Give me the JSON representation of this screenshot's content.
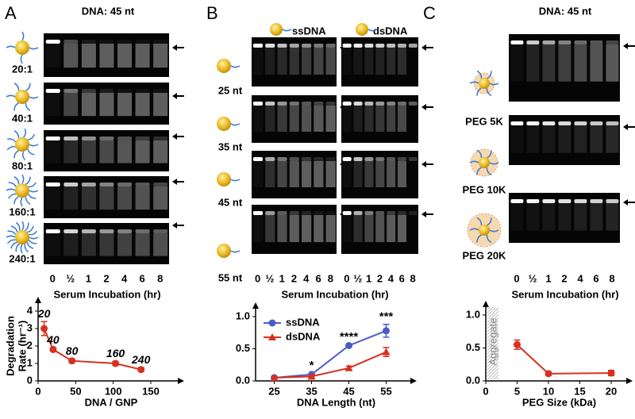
{
  "panels": {
    "a": {
      "label": "A",
      "header": "DNA: 45 nt",
      "gel_labels": [
        "20:1",
        "40:1",
        "80:1",
        "160:1",
        "240:1"
      ],
      "lanes": [
        "0",
        "½",
        "1",
        "2",
        "4",
        "6",
        "8"
      ],
      "lane_axis": "Serum Incubation (hr)"
    },
    "b": {
      "label": "B",
      "columns": [
        "ssDNA",
        "dsDNA"
      ],
      "gel_labels": [
        "25 nt",
        "35 nt",
        "45 nt",
        "55 nt"
      ],
      "lanes": [
        "0",
        "½",
        "1",
        "2",
        "4",
        "6",
        "8"
      ],
      "lane_axis": "Serum Incubation (hr)"
    },
    "c": {
      "label": "C",
      "header": "DNA: 45 nt",
      "gel_labels": [
        "PEG  5K",
        "PEG 10K",
        "PEG 20K"
      ],
      "lanes": [
        "0",
        "½",
        "1",
        "2",
        "4",
        "6",
        "8"
      ],
      "lane_axis": "Serum Incubation (hr)"
    }
  },
  "chart_data": [
    {
      "type": "line",
      "ylabel": [
        "Degradation",
        "Rate (hr⁻¹)"
      ],
      "xlabel": "DNA / GNP",
      "x": [
        8,
        20,
        45,
        103,
        137
      ],
      "series": [
        {
          "color": "#d7301f",
          "marker": "circle",
          "values": [
            3.0,
            1.8,
            1.15,
            1.0,
            0.65
          ],
          "errors": [
            0.4,
            0.1,
            0.1,
            0.12,
            0.1
          ],
          "point_labels": [
            "20",
            "40",
            "80",
            "160",
            "240"
          ]
        }
      ],
      "xlim": [
        0,
        150
      ],
      "xticks": [
        0,
        50,
        100,
        150
      ],
      "ylim": [
        0,
        4
      ],
      "yticks": [
        0,
        1,
        2,
        3,
        4
      ]
    },
    {
      "type": "line",
      "xlabel": "DNA Length (nt)",
      "x": [
        25,
        35,
        45,
        55
      ],
      "series": [
        {
          "name": "ssDNA",
          "color": "#4a5cc4",
          "marker": "circle",
          "values": [
            0.05,
            0.1,
            0.55,
            0.78
          ],
          "errors": [
            0.02,
            0.02,
            0.02,
            0.1
          ]
        },
        {
          "name": "dsDNA",
          "color": "#d7301f",
          "marker": "triangle",
          "values": [
            0.05,
            0.07,
            0.2,
            0.45
          ],
          "errors": [
            0.02,
            0.02,
            0.03,
            0.07
          ]
        }
      ],
      "annotations": [
        {
          "x": 35,
          "text": "*"
        },
        {
          "x": 45,
          "text": "****"
        },
        {
          "x": 55,
          "text": "***"
        }
      ],
      "legend": "upper left",
      "xlim": [
        20,
        60
      ],
      "xticks": [
        25,
        35,
        45,
        55
      ],
      "ylim": [
        0,
        1
      ],
      "yticks": [
        {
          "value": 0,
          "label": "0.0"
        },
        {
          "value": 0.5,
          "label": "0.5"
        },
        {
          "value": 1,
          "label": "1.0"
        }
      ]
    },
    {
      "type": "line",
      "xlabel": "PEG Size (kDa)",
      "x": [
        5,
        10,
        20
      ],
      "series": [
        {
          "color": "#d7301f",
          "marker": "circle",
          "values": [
            0.55,
            0.11,
            0.12
          ],
          "errors": [
            0.07,
            0.03,
            0.04
          ]
        }
      ],
      "annotation": "Aggregate",
      "xlim": [
        0,
        20
      ],
      "xticks": [
        0,
        5,
        10,
        15,
        20
      ],
      "ylim": [
        0,
        1
      ],
      "yticks": [
        {
          "value": 0,
          "label": "0.0"
        },
        {
          "value": 0.5,
          "label": "0.5"
        },
        {
          "value": 1,
          "label": "1.0"
        }
      ]
    }
  ]
}
